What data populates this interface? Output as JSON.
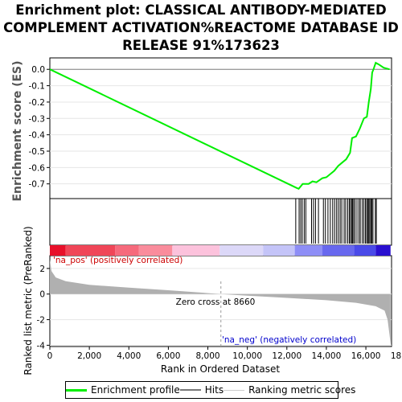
{
  "title_lines": [
    "Enrichment plot: CLASSICAL ANTIBODY-MEDIATED",
    "COMPLEMENT ACTIVATION%REACTOME DATABASE ID",
    "RELEASE 91%173623"
  ],
  "legend": [
    {
      "label": "Enrichment profile",
      "color": "#00ee00",
      "style": "thick"
    },
    {
      "label": "Hits",
      "color": "#777777",
      "style": "medium"
    },
    {
      "label": "Ranking metric scores",
      "color": "#cccccc",
      "style": "thin"
    }
  ],
  "labels": {
    "pos": "'na_pos' (positively correlated)",
    "neg": "'na_neg' (negatively correlated)",
    "zero_cross": "Zero cross at 8660"
  },
  "colors": {
    "enrichment": "#00ee00",
    "hits": "#000000",
    "metric": "#b0b0b0",
    "pos_label": "#cc0000",
    "neg_label": "#0000cc"
  },
  "chart_data": {
    "type": "line",
    "x_axis": {
      "label": "Rank in Ordered Dataset",
      "range": [
        0,
        17300
      ],
      "ticks": [
        0,
        2000,
        4000,
        6000,
        8000,
        10000,
        12000,
        14000,
        16000,
        18000
      ],
      "tick_labels": [
        "0",
        "2,000",
        "4,000",
        "6,000",
        "8,000",
        "10,000",
        "12,000",
        "14,000",
        "16,000",
        "18,000"
      ]
    },
    "es_axis": {
      "label": "Enrichment score (ES)",
      "range": [
        -0.79,
        0.07
      ],
      "ticks": [
        0.0,
        -0.1,
        -0.2,
        -0.3,
        -0.4,
        -0.5,
        -0.6,
        -0.7
      ],
      "tick_labels": [
        "0.0",
        "-0.1",
        "-0.2",
        "-0.3",
        "-0.4",
        "-0.5",
        "-0.6",
        "-0.7"
      ]
    },
    "metric_axis": {
      "label": "Ranked list metric (PreRanked)",
      "range": [
        -4.1,
        3.0
      ],
      "ticks": [
        2,
        0,
        -2,
        -4
      ],
      "tick_labels": [
        "2",
        "0",
        "-2",
        "-4"
      ]
    },
    "zero_cross": 8660,
    "enrichment_profile": [
      [
        0,
        0.0
      ],
      [
        12500,
        -0.725
      ],
      [
        12600,
        -0.73
      ],
      [
        12800,
        -0.7
      ],
      [
        13100,
        -0.7
      ],
      [
        13300,
        -0.685
      ],
      [
        13500,
        -0.69
      ],
      [
        13800,
        -0.665
      ],
      [
        14000,
        -0.66
      ],
      [
        14200,
        -0.64
      ],
      [
        14400,
        -0.62
      ],
      [
        14600,
        -0.59
      ],
      [
        14800,
        -0.57
      ],
      [
        15000,
        -0.55
      ],
      [
        15200,
        -0.51
      ],
      [
        15300,
        -0.42
      ],
      [
        15500,
        -0.41
      ],
      [
        15700,
        -0.36
      ],
      [
        15900,
        -0.3
      ],
      [
        16050,
        -0.29
      ],
      [
        16150,
        -0.2
      ],
      [
        16250,
        -0.12
      ],
      [
        16320,
        -0.02
      ],
      [
        16400,
        0.005
      ],
      [
        16500,
        0.04
      ],
      [
        16650,
        0.03
      ],
      [
        16900,
        0.01
      ],
      [
        17200,
        0.0
      ]
    ],
    "hits": [
      12450,
      12620,
      12700,
      12780,
      12880,
      12960,
      13250,
      13350,
      13450,
      13600,
      13850,
      13950,
      14080,
      14200,
      14320,
      14420,
      14520,
      14610,
      14700,
      14780,
      14900,
      14980,
      15080,
      15160,
      15220,
      15280,
      15330,
      15380,
      15450,
      15550,
      15650,
      15720,
      15820,
      15900,
      15980,
      16040,
      16100,
      16150,
      16200,
      16260,
      16310,
      16360,
      16480,
      16530
    ],
    "metric": [
      [
        0,
        2.7
      ],
      [
        80,
        1.8
      ],
      [
        300,
        1.3
      ],
      [
        800,
        1.0
      ],
      [
        2000,
        0.72
      ],
      [
        4000,
        0.5
      ],
      [
        6000,
        0.3
      ],
      [
        8660,
        0.0
      ],
      [
        10000,
        -0.12
      ],
      [
        12000,
        -0.3
      ],
      [
        14000,
        -0.48
      ],
      [
        15500,
        -0.68
      ],
      [
        16500,
        -0.95
      ],
      [
        16950,
        -1.3
      ],
      [
        17100,
        -2.0
      ],
      [
        17200,
        -3.2
      ],
      [
        17250,
        -3.9
      ]
    ],
    "rank_gradient": [
      {
        "from": 0,
        "to": 800,
        "color": "#e8102a"
      },
      {
        "from": 800,
        "to": 3300,
        "color": "#f04658"
      },
      {
        "from": 3300,
        "to": 4500,
        "color": "#f66a7c"
      },
      {
        "from": 4500,
        "to": 6200,
        "color": "#fa8c9c"
      },
      {
        "from": 6200,
        "to": 8600,
        "color": "#fcc2dc"
      },
      {
        "from": 8600,
        "to": 10800,
        "color": "#dcd8f8"
      },
      {
        "from": 10800,
        "to": 12400,
        "color": "#c4c4f8"
      },
      {
        "from": 12400,
        "to": 13800,
        "color": "#8e8ef6"
      },
      {
        "from": 13800,
        "to": 15400,
        "color": "#6868ee"
      },
      {
        "from": 15400,
        "to": 16500,
        "color": "#4a4ae8"
      },
      {
        "from": 16500,
        "to": 17250,
        "color": "#2a10d0"
      }
    ]
  }
}
